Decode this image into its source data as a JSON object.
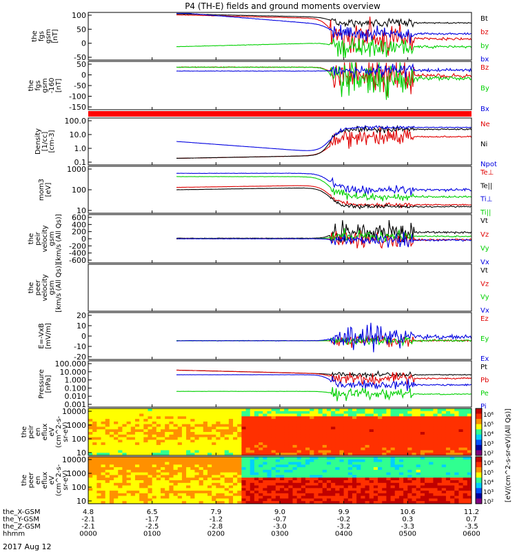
{
  "title": "P4 (TH-E) fields and ground moments overview",
  "date_label": "2017 Aug 12",
  "colors": {
    "black": "#000000",
    "red": "#e00000",
    "green": "#00d000",
    "blue": "#0000e0"
  },
  "orbit_rows": [
    {
      "label": "the_X-GSM",
      "values": [
        "4.8",
        "6.5",
        "7.9",
        "9.0",
        "9.9",
        "10.6",
        "11.2"
      ]
    },
    {
      "label": "the_Y-GSM",
      "values": [
        "-2.1",
        "-1.7",
        "-1.2",
        "-0.7",
        "-0.2",
        "0.3",
        "0.7"
      ]
    },
    {
      "label": "the_Z-GSM",
      "values": [
        "-2.1",
        "-2.5",
        "-2.8",
        "-3.0",
        "-3.2",
        "-3.3",
        "-3.5"
      ]
    },
    {
      "label": "hhmm",
      "values": [
        "0000",
        "0100",
        "0200",
        "0300",
        "0400",
        "0500",
        "0600"
      ]
    }
  ],
  "chart_data": [
    {
      "type": "line",
      "ylabel": [
        "the",
        "fgs",
        "gsm",
        "[nT]"
      ],
      "ylim": [
        -80,
        100
      ],
      "ticks": [
        "100",
        "50",
        "0",
        "-50"
      ],
      "series": [
        {
          "name": "Bt",
          "color": "black"
        },
        {
          "name": "bz",
          "color": "red"
        },
        {
          "name": "by",
          "color": "green"
        },
        {
          "name": "bx",
          "color": "blue"
        }
      ]
    },
    {
      "type": "line",
      "ylabel": [
        "the",
        "fgs",
        "gsm",
        "-160",
        "[nT]"
      ],
      "ylim": [
        -170,
        30
      ],
      "ticks": [
        "50",
        "0",
        "-50",
        "-100",
        "-150"
      ],
      "series": [
        {
          "name": "Bz",
          "color": "red"
        },
        {
          "name": "By",
          "color": "green"
        },
        {
          "name": "Bx",
          "color": "blue"
        }
      ]
    },
    {
      "type": "line",
      "ylabel": [
        "Density",
        "[1/cc]",
        "[cm-3]"
      ],
      "ylim": [
        0.1,
        100
      ],
      "log": true,
      "ticks": [
        "100.0",
        "10.0",
        "1.0",
        "0.1"
      ],
      "series": [
        {
          "name": "Ne",
          "color": "red"
        },
        {
          "name": "Ni",
          "color": "black"
        },
        {
          "name": "Npot",
          "color": "blue"
        }
      ]
    },
    {
      "type": "line",
      "ylabel": [
        "mom3",
        "[eV]"
      ],
      "ylim": [
        10,
        10000
      ],
      "log": true,
      "ticks": [
        "1000",
        "100",
        "10"
      ],
      "series": [
        {
          "name": "Te⊥",
          "color": "red"
        },
        {
          "name": "Te||",
          "color": "black"
        },
        {
          "name": "Ti⊥",
          "color": "blue"
        },
        {
          "name": "Ti||",
          "color": "green"
        }
      ]
    },
    {
      "type": "line",
      "ylabel": [
        "the",
        "peir",
        "velocity",
        "gsm",
        "[km/s (All Qs)]"
      ],
      "ylim": [
        -600,
        600
      ],
      "ticks": [
        "600",
        "400",
        "200",
        "0",
        "-200",
        "-400",
        "-600"
      ],
      "series": [
        {
          "name": "Vt",
          "color": "black"
        },
        {
          "name": "Vz",
          "color": "red"
        },
        {
          "name": "Vy",
          "color": "green"
        },
        {
          "name": "Vx",
          "color": "blue"
        }
      ]
    },
    {
      "type": "line",
      "ylabel": [
        "the",
        "peer",
        "velocity",
        "gsm",
        "[km/s (All Qs)]"
      ],
      "ylim": [
        0,
        1
      ],
      "ticks": [],
      "series": [
        {
          "name": "Vt",
          "color": "black"
        },
        {
          "name": "Vz",
          "color": "red"
        },
        {
          "name": "Vy",
          "color": "green"
        },
        {
          "name": "Vx",
          "color": "blue"
        }
      ]
    },
    {
      "type": "line",
      "ylabel": [
        "E=-VxB",
        "[mV/m]"
      ],
      "ylim": [
        -20,
        20
      ],
      "ticks": [
        "20",
        "10",
        "0",
        "-10",
        "-20"
      ],
      "series": [
        {
          "name": "Ez",
          "color": "red"
        },
        {
          "name": "Ey",
          "color": "green"
        },
        {
          "name": "Ex",
          "color": "blue"
        }
      ]
    },
    {
      "type": "line",
      "ylabel": [
        "Pressure",
        "[nPa]"
      ],
      "ylim": [
        0.001,
        100
      ],
      "log": true,
      "ticks": [
        "100.000",
        "10.000",
        "1.000",
        "0.100",
        "0.010",
        "0.001"
      ],
      "series": [
        {
          "name": "Pt",
          "color": "black"
        },
        {
          "name": "Pb",
          "color": "red"
        },
        {
          "name": "Pe",
          "color": "green"
        },
        {
          "name": "Pi",
          "color": "blue"
        }
      ]
    },
    {
      "type": "heatmap",
      "ylabel": [
        "the",
        "peir",
        "en",
        "eflux",
        "eV",
        "(cm^2-s-",
        "sr-eV)"
      ],
      "ylim": [
        5,
        20000
      ],
      "log": true,
      "ticks": [
        "10000",
        "1000",
        "100",
        "10"
      ]
    },
    {
      "type": "heatmap",
      "ylabel": [
        "the",
        "peer",
        "en",
        "eflux",
        "eV",
        "(cm^2-s-",
        "sr-eV)"
      ],
      "ylim": [
        5,
        20000
      ],
      "log": true,
      "ticks": [
        "10000",
        "1000",
        "100",
        "10"
      ]
    }
  ],
  "colorbar": {
    "label": "[eV/(cm^2-s-sr-eV)(All Qs)]",
    "ticks": [
      "10⁶",
      "10⁵",
      "10⁴",
      "10³",
      "10²"
    ],
    "ticks2": [
      "10⁶",
      "10⁵",
      "10⁴",
      "10³",
      "10²"
    ]
  }
}
